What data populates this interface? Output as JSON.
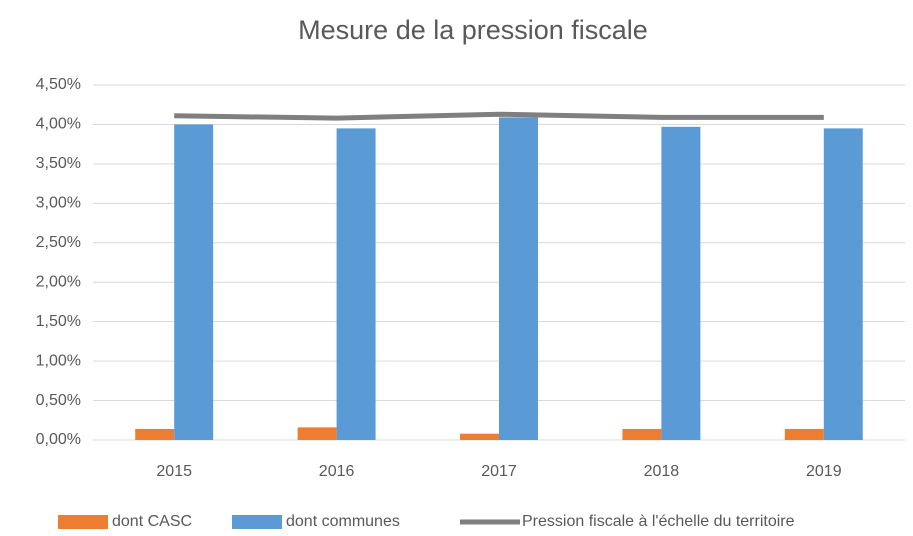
{
  "chart_data": {
    "type": "bar",
    "title": "Mesure de la pression fiscale",
    "categories": [
      "2015",
      "2016",
      "2017",
      "2018",
      "2019"
    ],
    "series": [
      {
        "name": "dont CASC",
        "color": "#ed7d31",
        "type": "bar",
        "values": [
          0.14,
          0.16,
          0.08,
          0.14,
          0.14
        ]
      },
      {
        "name": "dont communes",
        "color": "#5b9bd5",
        "type": "bar",
        "values": [
          4.0,
          3.95,
          4.09,
          3.97,
          3.95
        ]
      },
      {
        "name": "Pression fiscale à l'échelle du territoire",
        "color": "#7f7f7f",
        "type": "line",
        "values": [
          4.11,
          4.08,
          4.13,
          4.09,
          4.09
        ]
      }
    ],
    "ylim": [
      0,
      4.5
    ],
    "yticks": [
      {
        "value": 0,
        "label": "0,00%"
      },
      {
        "value": 0.5,
        "label": "0,50%"
      },
      {
        "value": 1,
        "label": "1,00%"
      },
      {
        "value": 1.5,
        "label": "1,50%"
      },
      {
        "value": 2,
        "label": "2,00%"
      },
      {
        "value": 2.5,
        "label": "2,50%"
      },
      {
        "value": 3,
        "label": "3,00%"
      },
      {
        "value": 3.5,
        "label": "3,50%"
      },
      {
        "value": 4,
        "label": "4,00%"
      },
      {
        "value": 4.5,
        "label": "4,50%"
      }
    ],
    "grid": true,
    "legend": "bottom"
  }
}
